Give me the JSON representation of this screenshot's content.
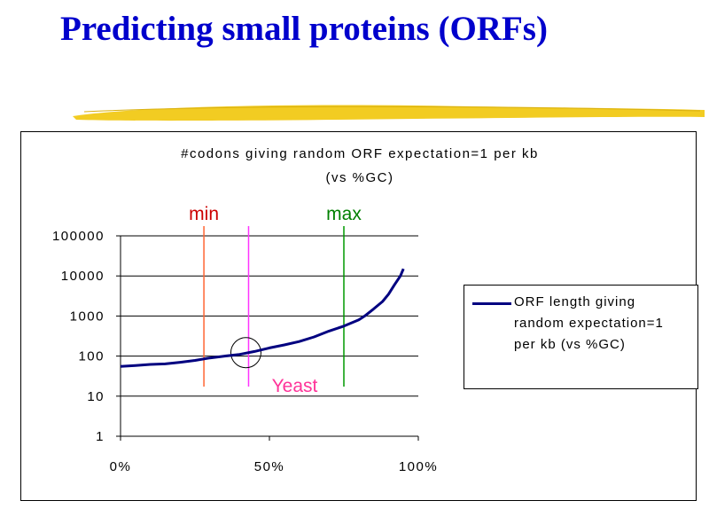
{
  "slide": {
    "title": "Predicting small proteins (ORFs)"
  },
  "colors": {
    "title": "#0000cc",
    "series": "#000080",
    "min_line": "#ff6633",
    "yeast_line": "#ff33ff",
    "max_line": "#009900",
    "min_label": "#cc0000",
    "yeast_label": "#ff3399",
    "max_label": "#008000",
    "brush": "#f2cc22"
  },
  "chart_data": {
    "type": "line",
    "title": "#codons giving random ORF expectation=1 per kb",
    "subtitle": "(vs %GC)",
    "xlabel": "",
    "ylabel": "",
    "x_ticks": [
      "0%",
      "50%",
      "100%"
    ],
    "y_ticks": [
      "1",
      "10",
      "100",
      "1000",
      "10000",
      "100000"
    ],
    "xlim": [
      0,
      100
    ],
    "ylim": [
      1,
      100000
    ],
    "y_scale": "log",
    "grid": "horizontal",
    "legend_position": "right",
    "series": [
      {
        "name": "ORF length giving random expectation=1 per kb (vs %GC)",
        "x": [
          0,
          5,
          10,
          15,
          20,
          25,
          30,
          35,
          40,
          45,
          50,
          55,
          60,
          65,
          70,
          75,
          80,
          82,
          85,
          88,
          90,
          92,
          94,
          95
        ],
        "y": [
          55,
          58,
          62,
          64,
          70,
          78,
          90,
          100,
          110,
          130,
          160,
          190,
          230,
          300,
          420,
          560,
          800,
          1000,
          1500,
          2300,
          3500,
          6000,
          10000,
          15000
        ]
      }
    ],
    "annotations": [
      {
        "label": "min",
        "x": 28
      },
      {
        "label": "Yeast",
        "x": 43
      },
      {
        "label": "max",
        "x": 75
      }
    ]
  }
}
